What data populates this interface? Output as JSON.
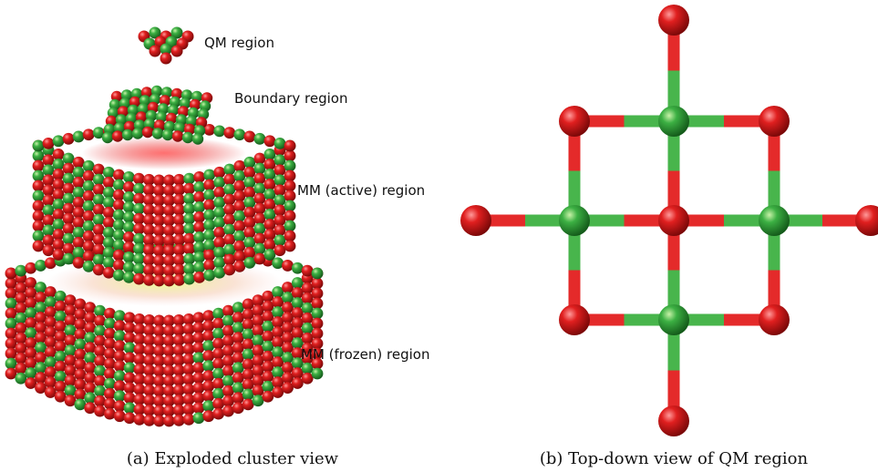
{
  "panel_a": {
    "labels": {
      "qm": "QM region",
      "boundary": "Boundary region",
      "mm_active": "MM (active) region",
      "mm_frozen": "MM (frozen) region"
    },
    "caption": "(a) Exploded cluster view"
  },
  "panel_b": {
    "caption": "(b) Top-down view of QM region"
  },
  "colors": {
    "red_atom": "#e01f1f",
    "green_atom": "#3cb043",
    "red_dark": "#9a0d0d",
    "green_dark": "#1f7a27",
    "bond_red": "#e42a2a",
    "bond_green": "#48b54c"
  }
}
